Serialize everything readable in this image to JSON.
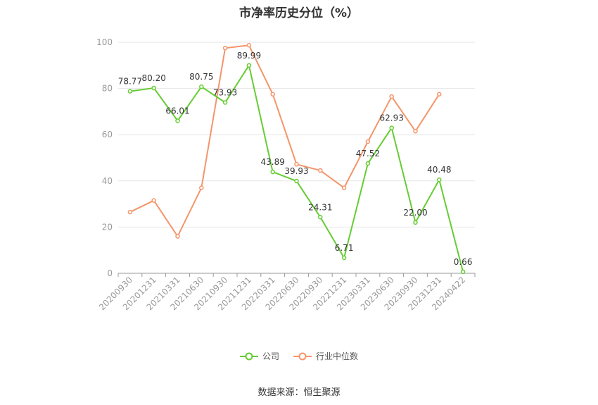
{
  "chart_data": {
    "type": "line",
    "title": "市净率历史分位（%）",
    "categories": [
      "20200930",
      "20201231",
      "20210331",
      "20210630",
      "20210930",
      "20211231",
      "20220331",
      "20220630",
      "20220930",
      "20221231",
      "20230331",
      "20230630",
      "20230930",
      "20231231",
      "20240422"
    ],
    "series": [
      {
        "name": "公司",
        "color": "#66cc33",
        "values": [
          78.77,
          80.2,
          66.01,
          80.75,
          73.93,
          89.99,
          43.89,
          39.93,
          24.31,
          6.71,
          47.52,
          62.93,
          22.0,
          40.48,
          0.66
        ],
        "labels": [
          "78.77",
          "80.20",
          "66.01",
          "80.75",
          "73.93",
          "89.99",
          "43.89",
          "39.93",
          "24.31",
          "6.71",
          "47.52",
          "62.93",
          "22.00",
          "40.48",
          "0.66"
        ]
      },
      {
        "name": "行业中位数",
        "color": "#f4956a",
        "values": [
          26.5,
          31.5,
          16.0,
          37.0,
          97.5,
          98.7,
          77.5,
          47.2,
          44.5,
          37.0,
          57.0,
          76.5,
          61.5,
          77.5,
          null
        ]
      }
    ],
    "ylim": [
      0,
      100
    ],
    "yticks": [
      0,
      20,
      40,
      60,
      80,
      100
    ],
    "grid": true,
    "legend": "bottom-center"
  },
  "source_text": "数据来源：恒生聚源"
}
